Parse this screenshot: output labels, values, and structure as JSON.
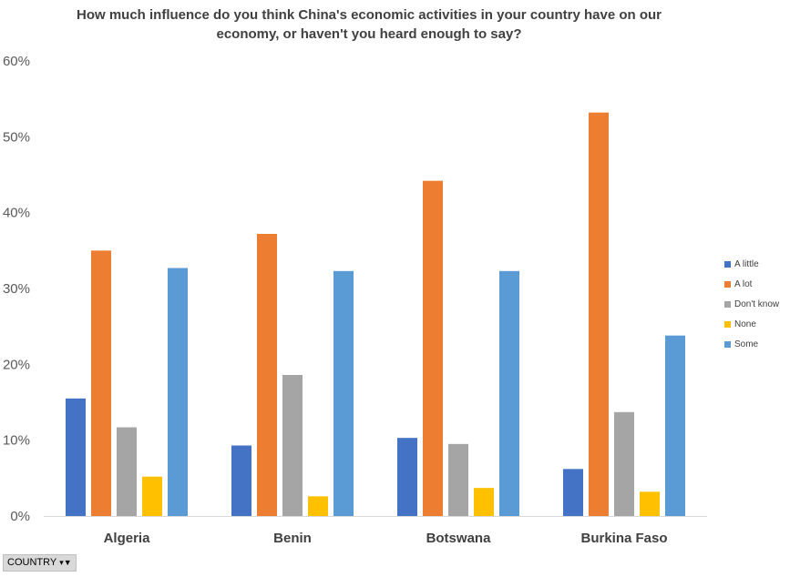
{
  "chart_data": {
    "type": "bar",
    "title": "How much influence do you think China's economic activities in your country have on our economy, or haven't you heard enough to say?",
    "categories": [
      "Algeria",
      "Benin",
      "Botswana",
      "Burkina Faso"
    ],
    "series": [
      {
        "name": "A little",
        "color": "#4472c4",
        "values": [
          15.5,
          9.3,
          10.3,
          6.2
        ]
      },
      {
        "name": "A lot",
        "color": "#ed7d31",
        "values": [
          35.0,
          37.2,
          44.2,
          53.2
        ]
      },
      {
        "name": "Don't know",
        "color": "#a5a5a5",
        "values": [
          11.7,
          18.6,
          9.5,
          13.7
        ]
      },
      {
        "name": "None",
        "color": "#ffc000",
        "values": [
          5.2,
          2.6,
          3.7,
          3.2
        ]
      },
      {
        "name": "Some",
        "color": "#5b9bd5",
        "values": [
          32.7,
          32.3,
          32.3,
          23.8
        ]
      }
    ],
    "yticks": [
      "0%",
      "10%",
      "20%",
      "30%",
      "40%",
      "50%",
      "60%"
    ],
    "ylim": [
      0,
      60
    ],
    "grid": false,
    "legend": "right"
  },
  "filter": {
    "label": "COUNTRY"
  }
}
